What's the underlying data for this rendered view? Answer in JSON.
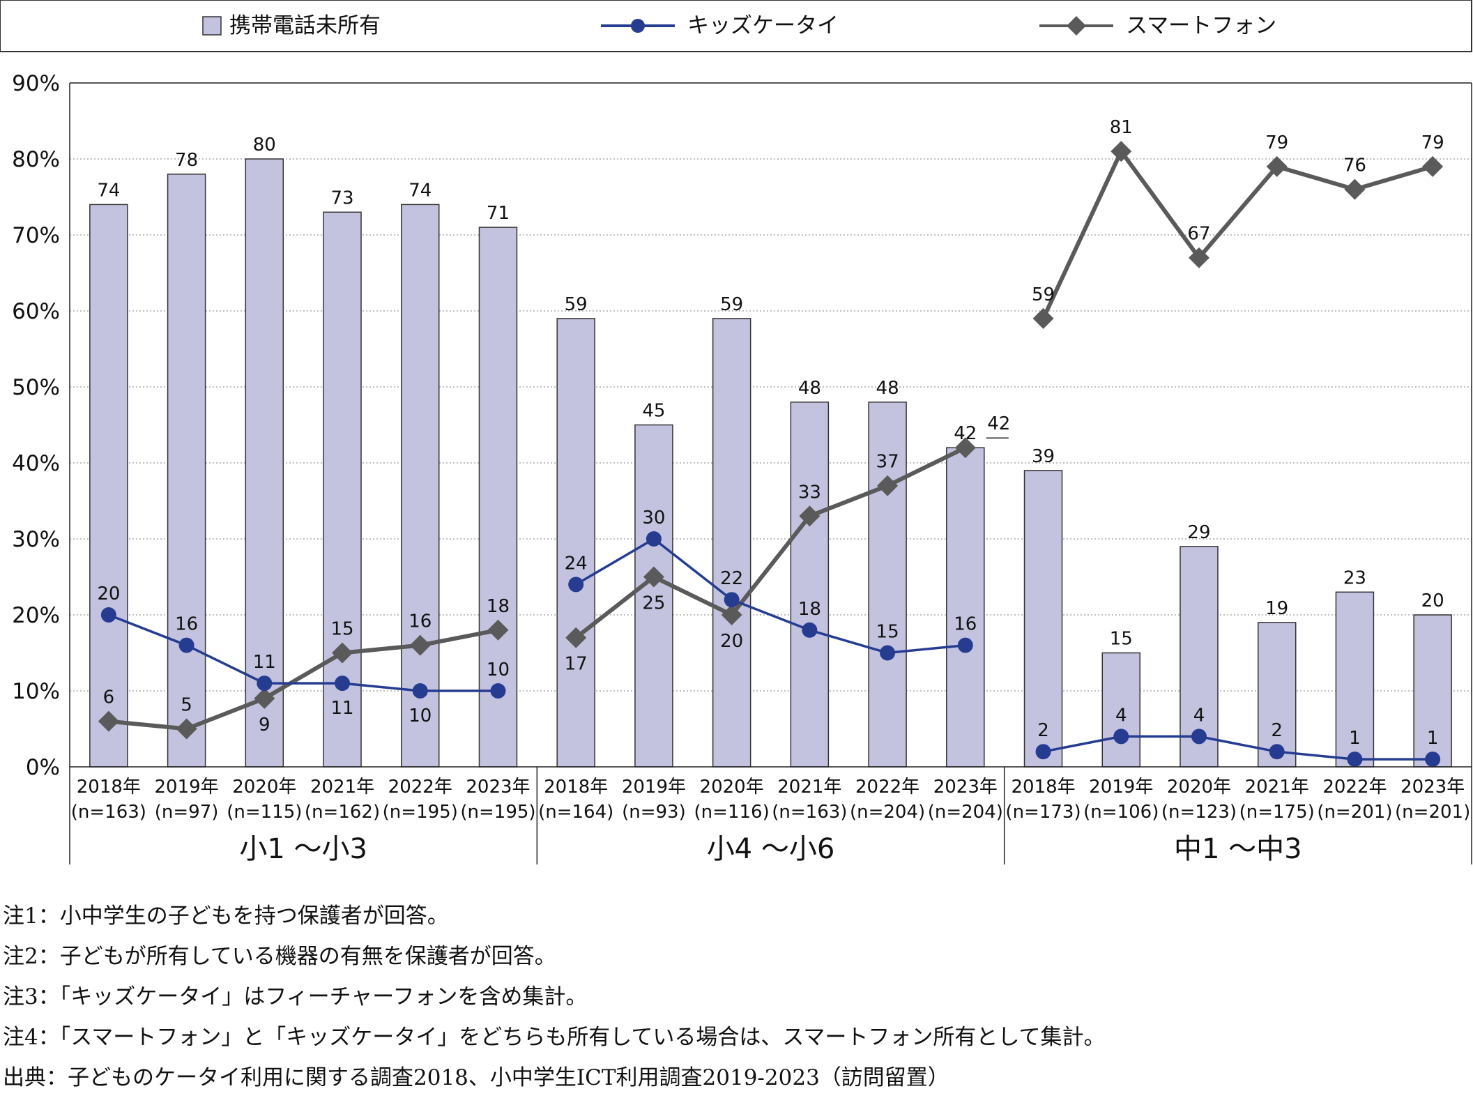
{
  "colors": {
    "bar_fill": "#c3c3e0",
    "bar_stroke": "#333333",
    "kids_line": "#253c91",
    "smart_line": "#5a5a5a"
  },
  "chart_data": {
    "type": "bar",
    "ylim": [
      0,
      90
    ],
    "yticks": [
      "0%",
      "10%",
      "20%",
      "30%",
      "40%",
      "50%",
      "60%",
      "70%",
      "80%",
      "90%"
    ],
    "grid": true,
    "legend_position": "top",
    "groups": [
      {
        "name": "小1 ～小3",
        "categories": [
          {
            "year": "2018年",
            "n": "(n=163)"
          },
          {
            "year": "2019年",
            "n": "(n=97)"
          },
          {
            "year": "2020年",
            "n": "(n=115)"
          },
          {
            "year": "2021年",
            "n": "(n=162)"
          },
          {
            "year": "2022年",
            "n": "(n=195)"
          },
          {
            "year": "2023年",
            "n": "(n=195)"
          }
        ]
      },
      {
        "name": "小4 ～小6",
        "categories": [
          {
            "year": "2018年",
            "n": "(n=164)"
          },
          {
            "year": "2019年",
            "n": "(n=93)"
          },
          {
            "year": "2020年",
            "n": "(n=116)"
          },
          {
            "year": "2021年",
            "n": "(n=163)"
          },
          {
            "year": "2022年",
            "n": "(n=204)"
          },
          {
            "year": "2023年",
            "n": "(n=204)"
          }
        ]
      },
      {
        "name": "中1 ～中3",
        "categories": [
          {
            "year": "2018年",
            "n": "(n=173)"
          },
          {
            "year": "2019年",
            "n": "(n=106)"
          },
          {
            "year": "2020年",
            "n": "(n=123)"
          },
          {
            "year": "2021年",
            "n": "(n=175)"
          },
          {
            "year": "2022年",
            "n": "(n=201)"
          },
          {
            "year": "2023年",
            "n": "(n=201)"
          }
        ]
      }
    ],
    "series": [
      {
        "name": "携帯電話未所有",
        "type": "bar",
        "values": [
          [
            74,
            78,
            80,
            73,
            74,
            71
          ],
          [
            59,
            45,
            59,
            48,
            48,
            42
          ],
          [
            39,
            15,
            29,
            19,
            23,
            20
          ]
        ]
      },
      {
        "name": "キッズケータイ",
        "type": "line",
        "values": [
          [
            20,
            16,
            11,
            11,
            10,
            10
          ],
          [
            24,
            30,
            22,
            18,
            15,
            16
          ],
          [
            2,
            4,
            4,
            2,
            1,
            1
          ]
        ]
      },
      {
        "name": "スマートフォン",
        "type": "line",
        "values": [
          [
            6,
            5,
            9,
            15,
            16,
            18
          ],
          [
            17,
            25,
            20,
            33,
            37,
            42
          ],
          [
            59,
            81,
            67,
            79,
            76,
            79
          ]
        ]
      }
    ]
  },
  "notes": [
    "注1：小中学生の子どもを持つ保護者が回答。",
    "注2：子どもが所有している機器の有無を保護者が回答。",
    "注3：「キッズケータイ」はフィーチャーフォンを含め集計。",
    "注4：「スマートフォン」と「キッズケータイ」をどちらも所有している場合は、スマートフォン所有として集計。",
    "出典：子どものケータイ利用に関する調査2018、小中学生ICT利用調査2019-2023（訪問留置）"
  ]
}
